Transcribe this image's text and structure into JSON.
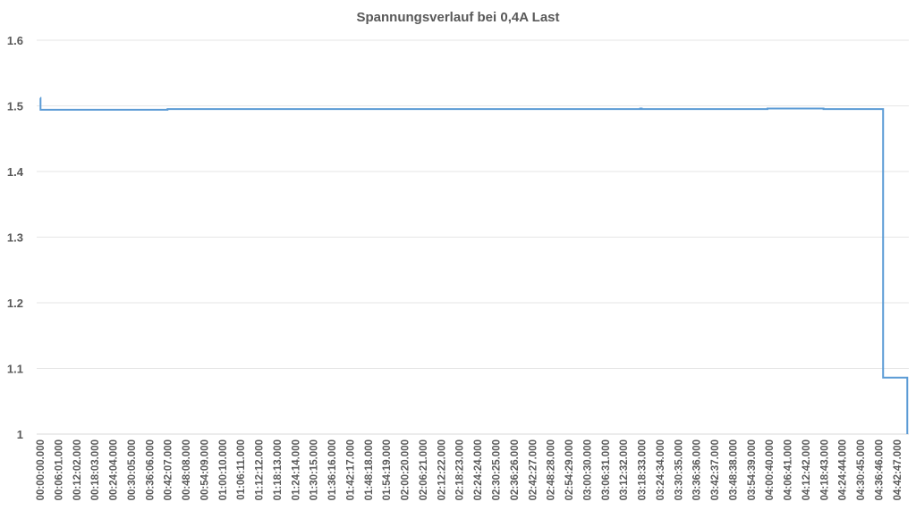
{
  "chart_data": {
    "type": "line",
    "title": "Spannungsverlauf bei 0,4A Last",
    "xlabel": "",
    "ylabel": "",
    "ylim": [
      1.0,
      1.6
    ],
    "yticks": [
      "1",
      "1.1",
      "1.2",
      "1.3",
      "1.4",
      "1.5",
      "1.6"
    ],
    "grid": true,
    "legend": "none",
    "line_color": "#5b9bd5",
    "xticks": [
      "00:00:00.000",
      "00:06:01.000",
      "00:12:02.000",
      "00:18:03.000",
      "00:24:04.000",
      "00:30:05.000",
      "00:36:06.000",
      "00:42:07.000",
      "00:48:08.000",
      "00:54:09.000",
      "01:00:10.000",
      "01:06:11.000",
      "01:12:12.000",
      "01:18:13.000",
      "01:24:14.000",
      "01:30:15.000",
      "01:36:16.000",
      "01:42:17.000",
      "01:48:18.000",
      "01:54:19.000",
      "02:00:20.000",
      "02:06:21.000",
      "02:12:22.000",
      "02:18:23.000",
      "02:24:24.000",
      "02:30:25.000",
      "02:36:26.000",
      "02:42:27.000",
      "02:48:28.000",
      "02:54:29.000",
      "03:00:30.000",
      "03:06:31.000",
      "03:12:32.000",
      "03:18:33.000",
      "03:24:34.000",
      "03:30:35.000",
      "03:36:36.000",
      "03:42:37.000",
      "03:48:38.000",
      "03:54:39.000",
      "04:00:40.000",
      "04:06:41.000",
      "04:12:42.000",
      "04:18:43.000",
      "04:24:44.000",
      "04:30:45.000",
      "04:36:46.000",
      "04:42:47.000"
    ],
    "series": [
      {
        "x": [
          "00:00:00",
          "00:00:05",
          "00:00:20",
          "00:30:00",
          "00:42:00",
          "03:00:00",
          "03:18:00",
          "03:18:30",
          "04:00:00",
          "04:18:00",
          "04:18:30",
          "04:38:10",
          "04:46:08",
          "04:46:09"
        ],
        "y": [
          1.512,
          1.494,
          1.494,
          1.494,
          1.495,
          1.495,
          1.496,
          1.495,
          1.496,
          1.496,
          1.495,
          1.086,
          1.086,
          1.0
        ]
      }
    ]
  }
}
